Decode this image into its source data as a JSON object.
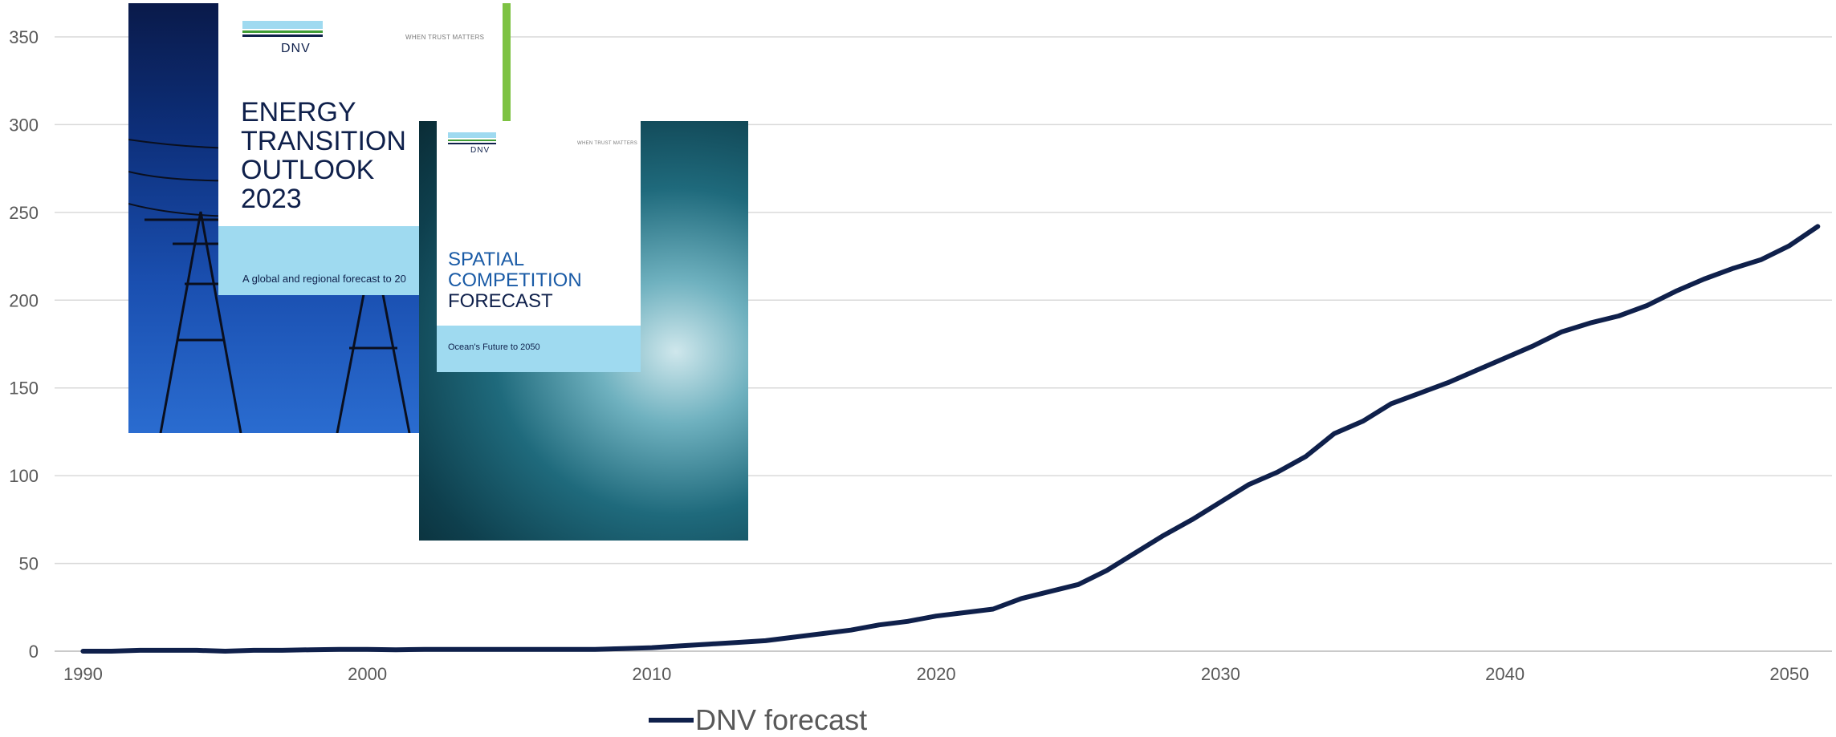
{
  "chart_data": {
    "type": "line",
    "title": "",
    "xlabel": "",
    "ylabel": "",
    "xlim": [
      1989,
      2051.5
    ],
    "ylim": [
      0,
      350
    ],
    "x_ticks": [
      1990,
      2000,
      2010,
      2020,
      2030,
      2040,
      2050
    ],
    "y_ticks": [
      0,
      50,
      100,
      150,
      200,
      250,
      300,
      350
    ],
    "grid": "horizontal",
    "legend_position": "bottom",
    "series": [
      {
        "name": "DNV forecast",
        "color": "#0f204b",
        "x": [
          1990,
          1991,
          1992,
          1993,
          1994,
          1995,
          1996,
          1997,
          1998,
          1999,
          2000,
          2001,
          2002,
          2003,
          2004,
          2005,
          2006,
          2007,
          2008,
          2009,
          2010,
          2011,
          2012,
          2013,
          2014,
          2015,
          2016,
          2017,
          2018,
          2019,
          2020,
          2021,
          2022,
          2023,
          2024,
          2025,
          2026,
          2027,
          2028,
          2029,
          2030,
          2031,
          2032,
          2033,
          2034,
          2035,
          2036,
          2037,
          2038,
          2039,
          2040,
          2041,
          2042,
          2043,
          2044,
          2045,
          2046,
          2047,
          2048,
          2049,
          2050,
          2051
        ],
        "y": [
          0,
          0,
          0.5,
          0.5,
          0.5,
          0,
          0.5,
          0.5,
          0.8,
          1,
          1,
          0.8,
          1,
          1,
          1,
          1,
          1,
          1,
          1,
          1.5,
          2,
          3,
          4,
          5,
          6,
          8,
          10,
          12,
          15,
          17,
          20,
          22,
          24,
          30,
          34,
          38,
          46,
          56,
          66,
          75,
          85,
          95,
          102,
          111,
          124,
          131,
          141,
          147,
          153,
          160,
          167,
          174,
          182,
          187,
          191,
          197,
          205,
          212,
          218,
          223,
          231,
          242
        ]
      }
    ]
  },
  "images": {
    "eto_cover": {
      "logo_text": "DNV",
      "tagline": "WHEN TRUST MATTERS",
      "title_line1": "ENERGY",
      "title_line2": "TRANSITION",
      "title_line3": "OUTLOOK",
      "title_line4": "2023",
      "subtitle": "A global and regional forecast to 20",
      "stripe_colors": [
        "#9fdaf0",
        "#3f9c35",
        "#0f204b"
      ]
    },
    "scf_cover": {
      "logo_text": "DNV",
      "tagline": "WHEN TRUST MATTERS",
      "title_line1": "SPATIAL",
      "title_line2": "COMPETITION",
      "title_line3": "FORECAST",
      "subtitle": "Ocean's Future to 2050",
      "title_accent_color": "#1a5ba6",
      "title_dark_color": "#0f204b"
    }
  },
  "colors": {
    "grid": "#d9d9d9",
    "axis_text": "#595959",
    "line": "#0f204b"
  }
}
